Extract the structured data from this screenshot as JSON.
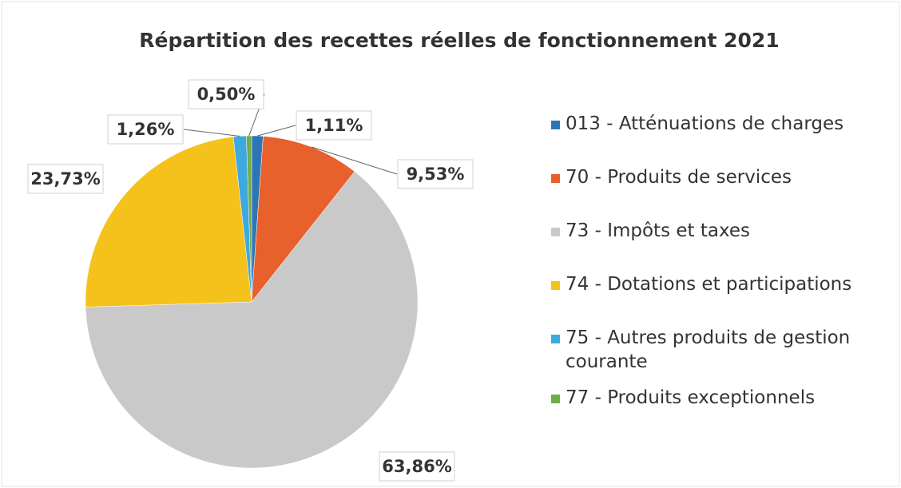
{
  "chart_data": {
    "type": "pie",
    "title": "Répartition des recettes réelles de fonctionnement 2021",
    "categories": [
      "013 - Atténuations de charges",
      "70 - Produits de services",
      "73 - Impôts et taxes",
      "74 - Dotations et participations",
      "75 - Autres produits de gestion courante",
      "77 - Produits exceptionnels"
    ],
    "values": [
      1.11,
      9.53,
      63.86,
      23.73,
      1.26,
      0.5
    ],
    "value_labels": [
      "1,11%",
      "9,53%",
      "63,86%",
      "23,73%",
      "1,26%",
      "0,50%"
    ],
    "colors": [
      "#2e75b6",
      "#e8602c",
      "#c9c9c9",
      "#f5c21b",
      "#3ea8e0",
      "#70ad47"
    ],
    "legend": "right"
  }
}
